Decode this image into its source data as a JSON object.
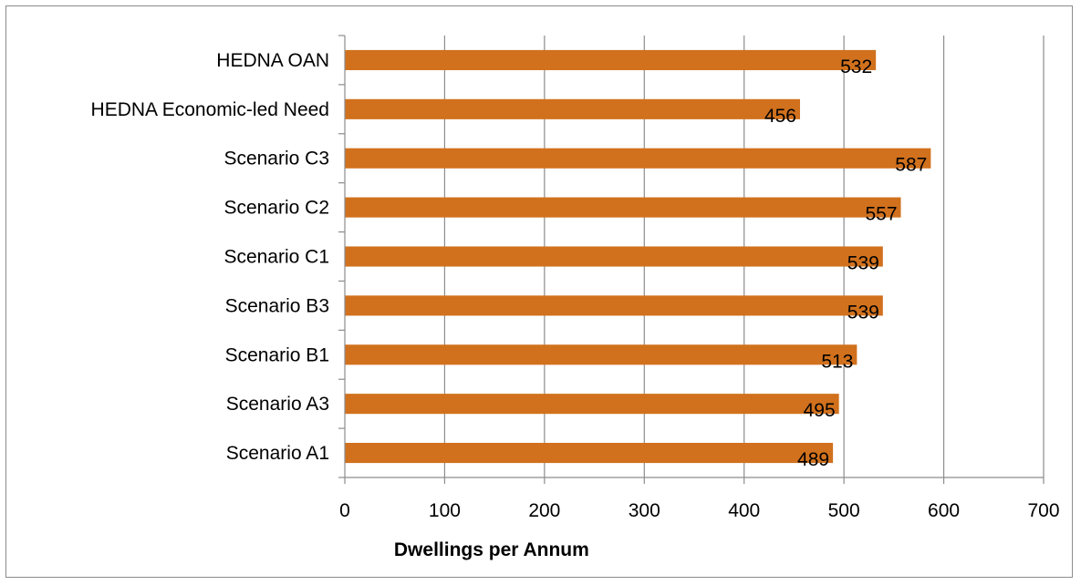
{
  "chart_data": {
    "type": "bar",
    "orientation": "horizontal",
    "categories": [
      "HEDNA OAN",
      "HEDNA Economic-led Need",
      "Scenario C3",
      "Scenario C2",
      "Scenario C1",
      "Scenario B3",
      "Scenario B1",
      "Scenario A3",
      "Scenario A1"
    ],
    "values": [
      532,
      456,
      587,
      557,
      539,
      539,
      513,
      495,
      489
    ],
    "data_labels": [
      "532",
      "456",
      "587",
      "557",
      "539",
      "539",
      "513",
      "495",
      "489"
    ],
    "xlabel": "Dwellings per Annum",
    "ylabel": "",
    "xlim": [
      0,
      700
    ],
    "xticks": [
      "0",
      "100",
      "200",
      "300",
      "400",
      "500",
      "600",
      "700"
    ],
    "grid": "vertical",
    "legend": "none",
    "bar_color": "#d1711d",
    "grid_color": "#8c8c8c"
  }
}
